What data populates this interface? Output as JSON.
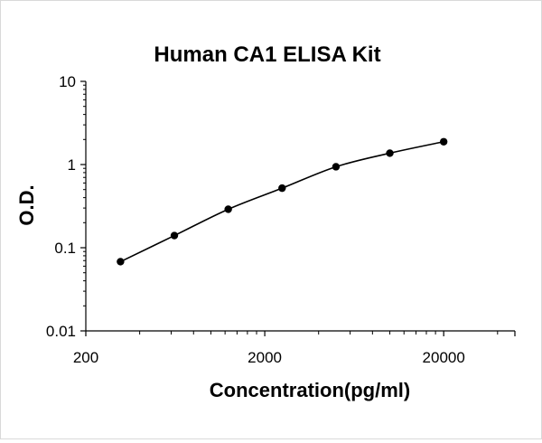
{
  "chart_data": {
    "type": "scatter",
    "title": "Human CA1 ELISA Kit",
    "xlabel": "Concentration(pg/ml)",
    "ylabel": "O.D.",
    "x_scale": "log",
    "y_scale": "log",
    "xlim": [
      200,
      50000
    ],
    "ylim": [
      0.01,
      10
    ],
    "x_ticks": [
      "200",
      "2000",
      "20000"
    ],
    "y_ticks": [
      "10",
      "1",
      "0.1",
      "0.01"
    ],
    "grid": false,
    "legend": "none",
    "colors": {
      "line": "#000000",
      "marker": "#000000"
    },
    "series": [
      {
        "line": "smooth",
        "x": [
          312.5,
          625,
          1250,
          2500,
          5000,
          10000,
          20000
        ],
        "y": [
          0.068,
          0.14,
          0.29,
          0.52,
          0.94,
          1.37,
          1.88
        ]
      }
    ]
  }
}
